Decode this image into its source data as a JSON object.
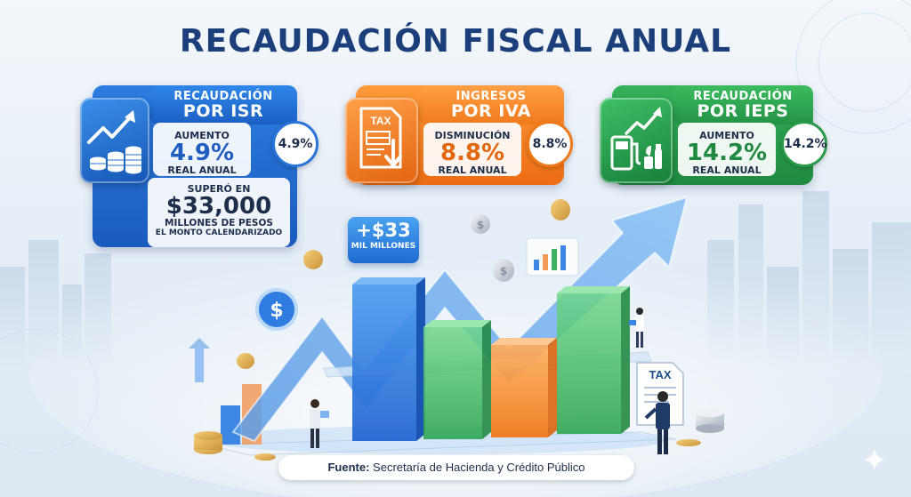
{
  "title": "RECAUDACIÓN FISCAL ANUAL",
  "cards": {
    "isr": {
      "line1": "RECAUDACIÓN",
      "line2": "POR ISR",
      "kind": "Aumento",
      "value": "4.9%",
      "sub": "REAL ANUAL",
      "badge": "4.9%",
      "extra_top": "SUPERÓ EN",
      "extra_value": "$33,000",
      "extra_line": "MILLONES DE PESOS",
      "extra_bottom": "EL MONTO CALENDARIZADO",
      "color": "#1f6fd1"
    },
    "iva": {
      "line1": "INGRESOS",
      "line2": "POR IVA",
      "kind": "Disminución",
      "value": "8.8%",
      "sub": "REAL ANUAL",
      "badge": "8.8%",
      "icon_text": "TAX",
      "color": "#f07a1a"
    },
    "ieps": {
      "line1": "RECAUDACIÓN",
      "line2": "POR IEPS",
      "kind": "Aumento",
      "value": "14.2%",
      "sub": "REAL ANUAL",
      "badge": "14.2%",
      "color": "#2a9a4a"
    }
  },
  "callout": {
    "value": "+$33",
    "unit": "MIL MILLONES"
  },
  "tax_sign": "TAX",
  "source": {
    "label": "Fuente:",
    "text": "Secretaría de Hacienda y Crédito Público"
  }
}
